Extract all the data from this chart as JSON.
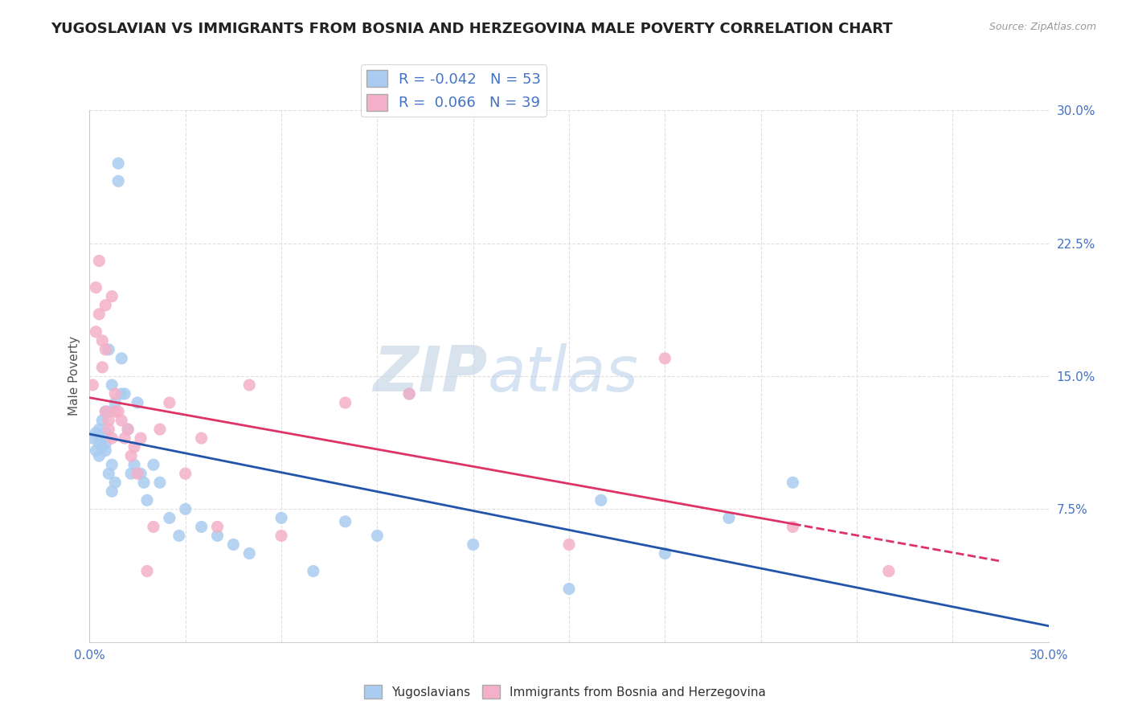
{
  "title": "YUGOSLAVIAN VS IMMIGRANTS FROM BOSNIA AND HERZEGOVINA MALE POVERTY CORRELATION CHART",
  "source": "Source: ZipAtlas.com",
  "ylabel": "Male Poverty",
  "xlim": [
    0.0,
    0.3
  ],
  "ylim": [
    0.0,
    0.3
  ],
  "series1_color": "#aaccf0",
  "series2_color": "#f4b0c8",
  "line1_color": "#2255aa",
  "line2_color": "#dd3366",
  "R1": -0.042,
  "N1": 53,
  "R2": 0.066,
  "N2": 39,
  "background_color": "#ffffff",
  "grid_color": "#e0e0e0",
  "tick_color": "#4472c4",
  "series1_x": [
    0.001,
    0.002,
    0.002,
    0.003,
    0.003,
    0.003,
    0.004,
    0.004,
    0.004,
    0.005,
    0.005,
    0.005,
    0.005,
    0.006,
    0.006,
    0.006,
    0.007,
    0.007,
    0.007,
    0.008,
    0.008,
    0.009,
    0.009,
    0.01,
    0.01,
    0.011,
    0.012,
    0.013,
    0.014,
    0.015,
    0.016,
    0.017,
    0.018,
    0.02,
    0.022,
    0.025,
    0.028,
    0.03,
    0.035,
    0.04,
    0.045,
    0.05,
    0.06,
    0.07,
    0.08,
    0.09,
    0.1,
    0.12,
    0.15,
    0.16,
    0.18,
    0.2,
    0.22
  ],
  "series1_y": [
    0.115,
    0.118,
    0.108,
    0.112,
    0.105,
    0.12,
    0.11,
    0.115,
    0.125,
    0.108,
    0.13,
    0.112,
    0.118,
    0.165,
    0.095,
    0.13,
    0.145,
    0.1,
    0.085,
    0.135,
    0.09,
    0.26,
    0.27,
    0.14,
    0.16,
    0.14,
    0.12,
    0.095,
    0.1,
    0.135,
    0.095,
    0.09,
    0.08,
    0.1,
    0.09,
    0.07,
    0.06,
    0.075,
    0.065,
    0.06,
    0.055,
    0.05,
    0.07,
    0.04,
    0.068,
    0.06,
    0.14,
    0.055,
    0.03,
    0.08,
    0.05,
    0.07,
    0.09
  ],
  "series2_x": [
    0.001,
    0.002,
    0.002,
    0.003,
    0.003,
    0.004,
    0.004,
    0.005,
    0.005,
    0.005,
    0.006,
    0.006,
    0.007,
    0.007,
    0.008,
    0.008,
    0.009,
    0.01,
    0.011,
    0.012,
    0.013,
    0.014,
    0.015,
    0.016,
    0.018,
    0.02,
    0.022,
    0.025,
    0.03,
    0.035,
    0.04,
    0.05,
    0.06,
    0.08,
    0.1,
    0.15,
    0.18,
    0.22,
    0.25
  ],
  "series2_y": [
    0.145,
    0.2,
    0.175,
    0.185,
    0.215,
    0.155,
    0.17,
    0.165,
    0.19,
    0.13,
    0.125,
    0.12,
    0.195,
    0.115,
    0.13,
    0.14,
    0.13,
    0.125,
    0.115,
    0.12,
    0.105,
    0.11,
    0.095,
    0.115,
    0.04,
    0.065,
    0.12,
    0.135,
    0.095,
    0.115,
    0.065,
    0.145,
    0.06,
    0.135,
    0.14,
    0.055,
    0.16,
    0.065,
    0.04
  ]
}
